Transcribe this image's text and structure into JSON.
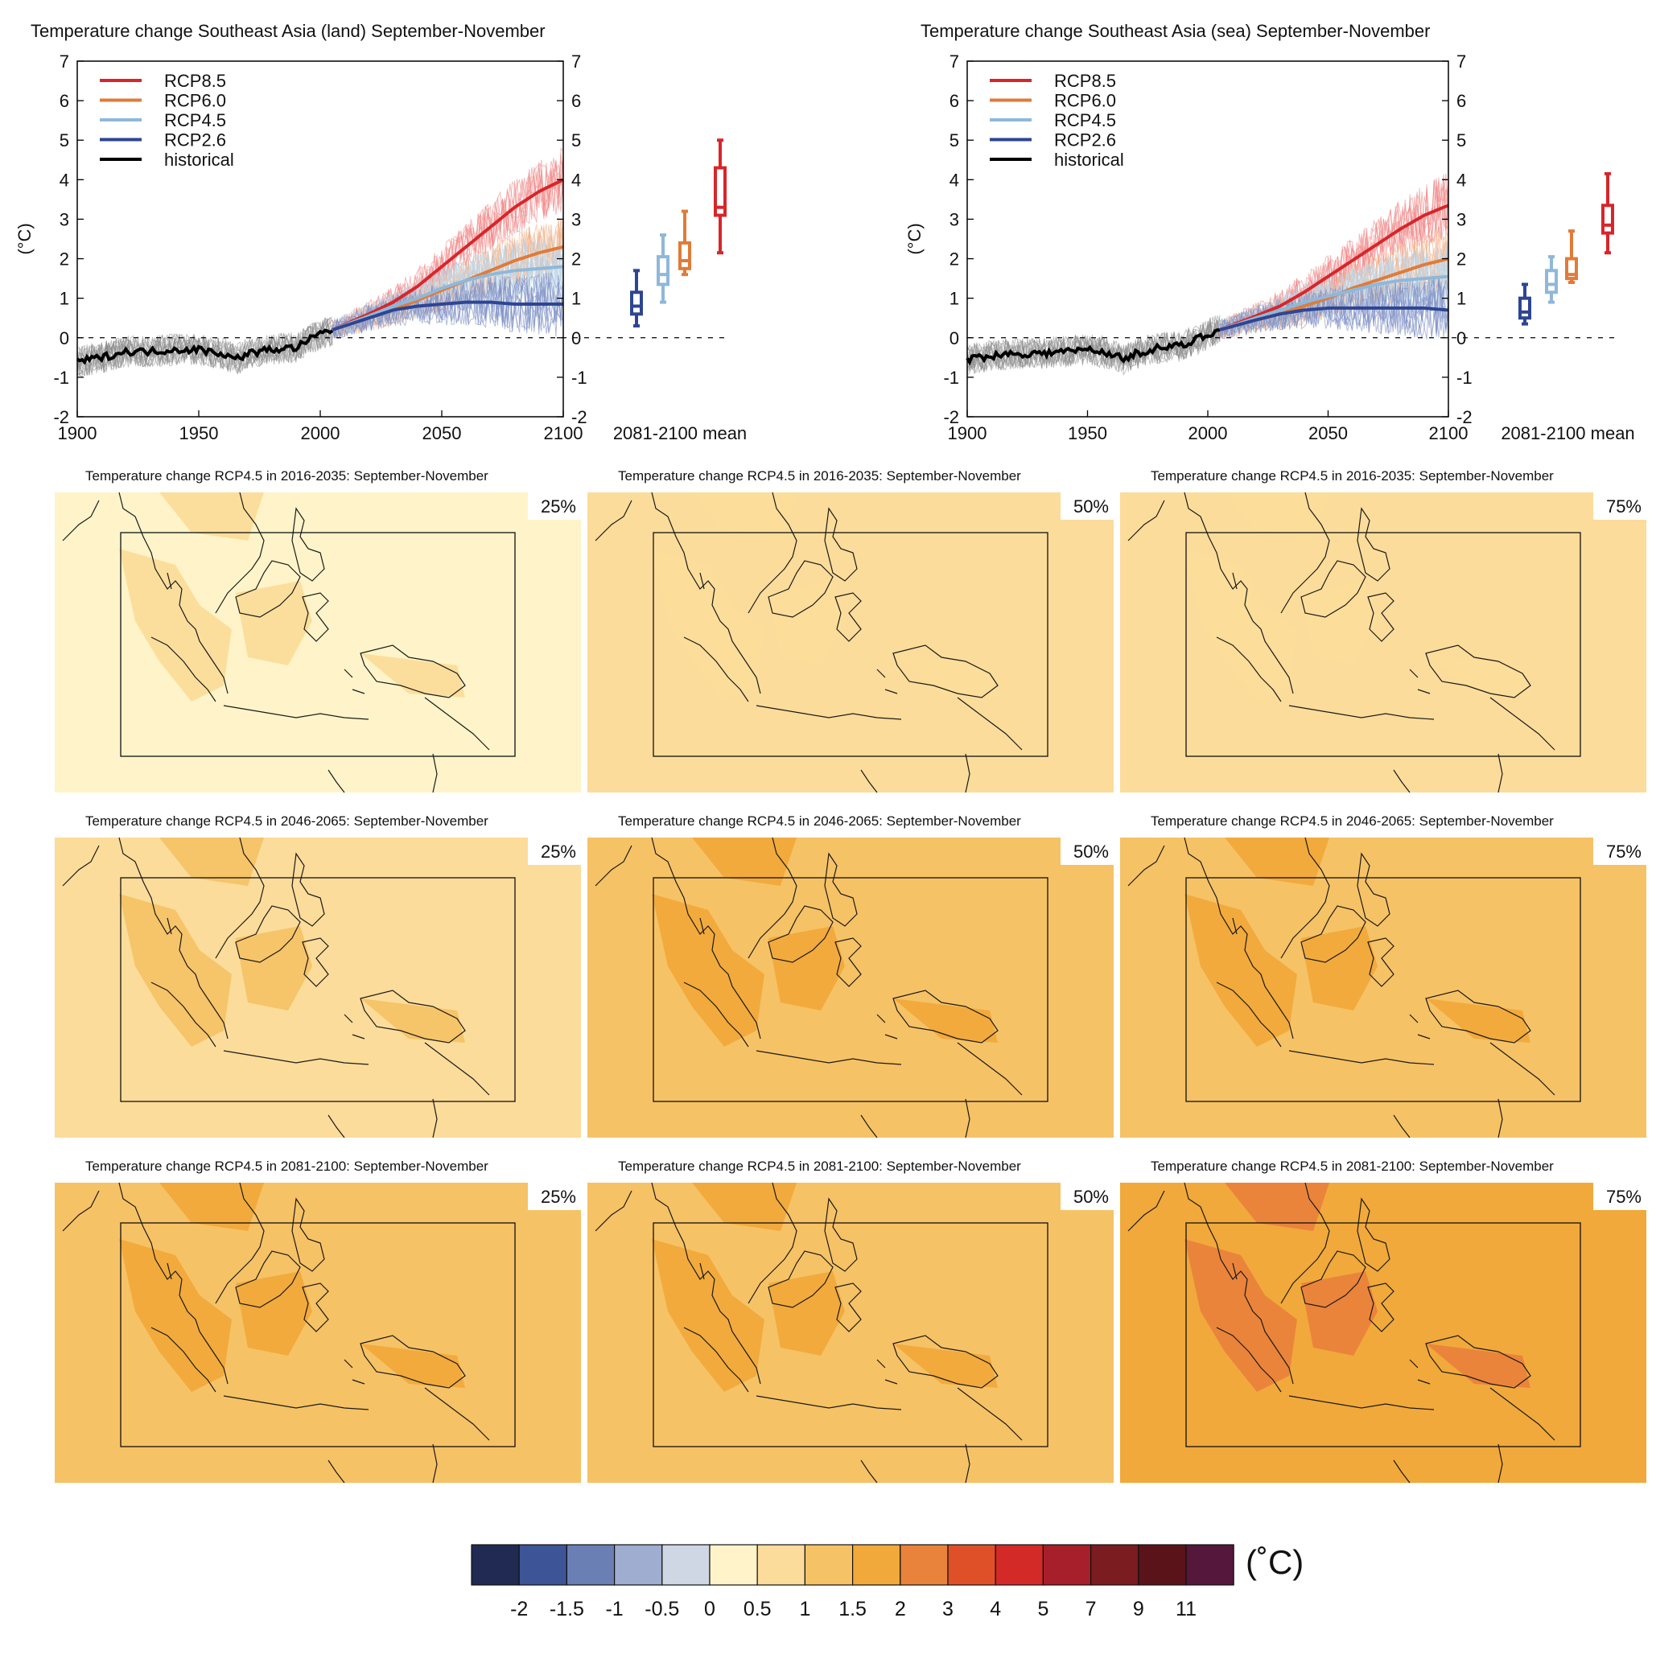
{
  "colors": {
    "rcp85": "#d7262b",
    "rcp60": "#e07b39",
    "rcp45": "#8fb8d9",
    "rcp26": "#2e4592",
    "historical": "#000000",
    "ensemble_hist": "#8a8a8a"
  },
  "chart_data": [
    {
      "type": "line",
      "title": "Temperature change Southeast Asia (land) September-November",
      "ylabel": "(°C)",
      "xlim": [
        1900,
        2100
      ],
      "ylim": [
        -2,
        7
      ],
      "x_ticks": [
        "1900",
        "1950",
        "2000",
        "2050",
        "2100"
      ],
      "y_ticks": [
        "-2",
        "-1",
        "0",
        "1",
        "2",
        "3",
        "4",
        "5",
        "6",
        "7"
      ],
      "legend": [
        "RCP8.5",
        "RCP6.0",
        "RCP4.5",
        "RCP2.6",
        "historical"
      ],
      "legend_position": "top-left",
      "series": [
        {
          "name": "historical",
          "x": [
            1900,
            1910,
            1920,
            1930,
            1940,
            1950,
            1960,
            1965,
            1970,
            1980,
            1990,
            2000,
            2005
          ],
          "y": [
            -0.6,
            -0.5,
            -0.35,
            -0.35,
            -0.3,
            -0.3,
            -0.4,
            -0.55,
            -0.4,
            -0.3,
            -0.25,
            0.1,
            0.2
          ]
        },
        {
          "name": "RCP8.5",
          "x": [
            2005,
            2020,
            2030,
            2040,
            2050,
            2060,
            2070,
            2080,
            2090,
            2100
          ],
          "y": [
            0.2,
            0.6,
            0.9,
            1.3,
            1.8,
            2.3,
            2.8,
            3.3,
            3.7,
            4.0
          ]
        },
        {
          "name": "RCP6.0",
          "x": [
            2005,
            2020,
            2030,
            2040,
            2050,
            2060,
            2070,
            2080,
            2090,
            2100
          ],
          "y": [
            0.2,
            0.5,
            0.7,
            0.95,
            1.2,
            1.45,
            1.7,
            1.95,
            2.15,
            2.3
          ]
        },
        {
          "name": "RCP4.5",
          "x": [
            2005,
            2020,
            2030,
            2040,
            2050,
            2060,
            2070,
            2080,
            2090,
            2100
          ],
          "y": [
            0.2,
            0.55,
            0.8,
            1.0,
            1.25,
            1.45,
            1.6,
            1.7,
            1.75,
            1.8
          ]
        },
        {
          "name": "RCP2.6",
          "x": [
            2005,
            2020,
            2030,
            2040,
            2050,
            2060,
            2070,
            2080,
            2090,
            2100
          ],
          "y": [
            0.2,
            0.5,
            0.7,
            0.8,
            0.85,
            0.9,
            0.9,
            0.85,
            0.85,
            0.85
          ]
        }
      ],
      "boxplot_label": "2081-2100 mean",
      "boxplots": [
        {
          "name": "RCP2.6",
          "min": 0.3,
          "q1": 0.6,
          "median": 0.8,
          "q3": 1.15,
          "max": 1.7
        },
        {
          "name": "RCP4.5",
          "min": 0.9,
          "q1": 1.35,
          "median": 1.6,
          "q3": 2.05,
          "max": 2.6
        },
        {
          "name": "RCP6.0",
          "min": 1.6,
          "q1": 1.75,
          "median": 1.95,
          "q3": 2.4,
          "max": 3.2
        },
        {
          "name": "RCP8.5",
          "min": 2.15,
          "q1": 3.1,
          "median": 3.3,
          "q3": 4.3,
          "max": 5.0
        }
      ]
    },
    {
      "type": "line",
      "title": "Temperature change Southeast Asia (sea) September-November",
      "ylabel": "(°C)",
      "xlim": [
        1900,
        2100
      ],
      "ylim": [
        -2,
        7
      ],
      "x_ticks": [
        "1900",
        "1950",
        "2000",
        "2050",
        "2100"
      ],
      "y_ticks": [
        "-2",
        "-1",
        "0",
        "1",
        "2",
        "3",
        "4",
        "5",
        "6",
        "7"
      ],
      "legend": [
        "RCP8.5",
        "RCP6.0",
        "RCP4.5",
        "RCP2.6",
        "historical"
      ],
      "legend_position": "top-left",
      "series": [
        {
          "name": "historical",
          "x": [
            1900,
            1910,
            1920,
            1930,
            1940,
            1950,
            1960,
            1965,
            1970,
            1980,
            1990,
            2000,
            2005
          ],
          "y": [
            -0.55,
            -0.45,
            -0.4,
            -0.4,
            -0.35,
            -0.3,
            -0.4,
            -0.55,
            -0.4,
            -0.25,
            -0.2,
            0.1,
            0.2
          ]
        },
        {
          "name": "RCP8.5",
          "x": [
            2005,
            2020,
            2030,
            2040,
            2050,
            2060,
            2070,
            2080,
            2090,
            2100
          ],
          "y": [
            0.2,
            0.55,
            0.8,
            1.15,
            1.55,
            1.95,
            2.35,
            2.75,
            3.1,
            3.35
          ]
        },
        {
          "name": "RCP6.0",
          "x": [
            2005,
            2020,
            2030,
            2040,
            2050,
            2060,
            2070,
            2080,
            2090,
            2100
          ],
          "y": [
            0.2,
            0.45,
            0.6,
            0.8,
            1.0,
            1.25,
            1.45,
            1.65,
            1.85,
            2.0
          ]
        },
        {
          "name": "RCP4.5",
          "x": [
            2005,
            2020,
            2030,
            2040,
            2050,
            2060,
            2070,
            2080,
            2090,
            2100
          ],
          "y": [
            0.2,
            0.5,
            0.7,
            0.9,
            1.05,
            1.2,
            1.35,
            1.45,
            1.5,
            1.55
          ]
        },
        {
          "name": "RCP2.6",
          "x": [
            2005,
            2020,
            2030,
            2040,
            2050,
            2060,
            2070,
            2080,
            2090,
            2100
          ],
          "y": [
            0.2,
            0.45,
            0.6,
            0.7,
            0.75,
            0.75,
            0.75,
            0.75,
            0.75,
            0.7
          ]
        }
      ],
      "boxplot_label": "2081-2100 mean",
      "boxplots": [
        {
          "name": "RCP2.6",
          "min": 0.35,
          "q1": 0.5,
          "median": 0.65,
          "q3": 1.0,
          "max": 1.35
        },
        {
          "name": "RCP4.5",
          "min": 0.9,
          "q1": 1.15,
          "median": 1.35,
          "q3": 1.7,
          "max": 2.05
        },
        {
          "name": "RCP6.0",
          "min": 1.4,
          "q1": 1.5,
          "median": 1.6,
          "q3": 2.0,
          "max": 2.7
        },
        {
          "name": "RCP8.5",
          "min": 2.15,
          "q1": 2.65,
          "median": 2.85,
          "q3": 3.35,
          "max": 4.15
        }
      ]
    },
    {
      "type": "heatmap",
      "panels": [
        {
          "title": "Temperature change RCP4.5 in 2016-2035: September-November",
          "percentile": "25%",
          "base_level": "0-0.5",
          "patch_level": "0.5-1"
        },
        {
          "title": "Temperature change RCP4.5 in 2016-2035: September-November",
          "percentile": "50%",
          "base_level": "0.5-1",
          "patch_level": "0.5-1"
        },
        {
          "title": "Temperature change RCP4.5 in 2016-2035: September-November",
          "percentile": "75%",
          "base_level": "0.5-1",
          "patch_level": "0.5-1"
        },
        {
          "title": "Temperature change RCP4.5 in 2046-2065: September-November",
          "percentile": "25%",
          "base_level": "0.5-1",
          "patch_level": "1-1.5"
        },
        {
          "title": "Temperature change RCP4.5 in 2046-2065: September-November",
          "percentile": "50%",
          "base_level": "1-1.5",
          "patch_level": "1.5-2"
        },
        {
          "title": "Temperature change RCP4.5 in 2046-2065: September-November",
          "percentile": "75%",
          "base_level": "1-1.5",
          "patch_level": "1.5-2"
        },
        {
          "title": "Temperature change RCP4.5 in 2081-2100: September-November",
          "percentile": "25%",
          "base_level": "1-1.5",
          "patch_level": "1.5-2"
        },
        {
          "title": "Temperature change RCP4.5 in 2081-2100: September-November",
          "percentile": "50%",
          "base_level": "1-1.5",
          "patch_level": "1.5-2"
        },
        {
          "title": "Temperature change RCP4.5 in 2081-2100: September-November",
          "percentile": "75%",
          "base_level": "1.5-2",
          "patch_level": "2-3"
        }
      ]
    }
  ],
  "colorbar": {
    "unit": "(˚C)",
    "tick_labels": [
      "-2",
      "-1.5",
      "-1",
      "-0.5",
      "0",
      "0.5",
      "1",
      "1.5",
      "2",
      "3",
      "4",
      "5",
      "7",
      "9",
      "11"
    ],
    "colors": [
      "#202a52",
      "#3d5597",
      "#6a7fb3",
      "#9eadd0",
      "#cfd6e4",
      "#fff4c9",
      "#fcdc9a",
      "#f6c266",
      "#f1a93b",
      "#e9823b",
      "#df5028",
      "#d42a27",
      "#a71f2b",
      "#7b1c20",
      "#5a1419",
      "#55173b"
    ]
  }
}
